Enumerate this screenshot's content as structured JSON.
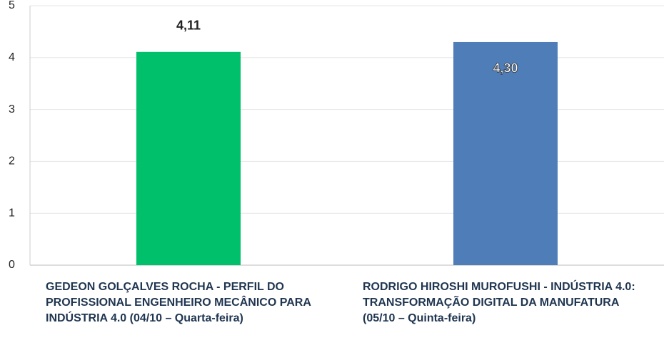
{
  "chart_data": {
    "type": "bar",
    "categories": [
      "GEDEON GOLÇALVES ROCHA - PERFIL DO PROFISSIONAL ENGENHEIRO MECÂNICO PARA INDÚSTRIA 4.0 (04/10 – Quarta-feira)",
      "RODRIGO HIROSHI MUROFUSHI - INDÚSTRIA 4.0: TRANSFORMAÇÃO DIGITAL DA MANUFATURA (05/10 – Quinta-feira)"
    ],
    "values": [
      4.11,
      4.3
    ],
    "value_labels": [
      "4,11",
      "4,30"
    ],
    "colors": [
      "#00c06b",
      "#4f7db8"
    ],
    "ylim": [
      0,
      5
    ],
    "yticks": [
      0,
      1,
      2,
      3,
      4,
      5
    ],
    "grid": true
  }
}
